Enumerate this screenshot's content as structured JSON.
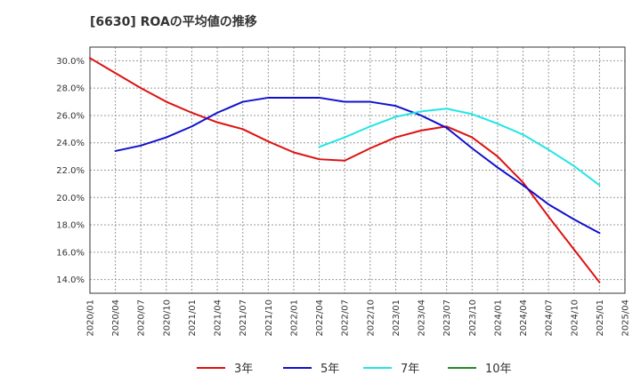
{
  "title": "[6630]  ROAの平均値の推移",
  "chart_data": {
    "type": "line",
    "title": "[6630]  ROAの平均値の推移",
    "xlabel": "",
    "ylabel": "",
    "ylim": [
      13.0,
      31.0
    ],
    "yticks": [
      14.0,
      16.0,
      18.0,
      20.0,
      22.0,
      24.0,
      26.0,
      28.0,
      30.0
    ],
    "ytick_labels": [
      "14.0%",
      "16.0%",
      "18.0%",
      "20.0%",
      "22.0%",
      "24.0%",
      "26.0%",
      "28.0%",
      "30.0%"
    ],
    "xticks": [
      "2020/01",
      "2020/04",
      "2020/07",
      "2020/10",
      "2021/01",
      "2021/04",
      "2021/07",
      "2021/10",
      "2022/01",
      "2022/04",
      "2022/07",
      "2022/10",
      "2023/01",
      "2023/04",
      "2023/07",
      "2023/10",
      "2024/01",
      "2024/04",
      "2024/07",
      "2024/10",
      "2025/01",
      "2025/04"
    ],
    "grid": true,
    "legend_position": "bottom",
    "series": [
      {
        "name": "3年",
        "color": "#dd1111",
        "x": [
          "2020/01",
          "2020/04",
          "2020/07",
          "2020/10",
          "2021/01",
          "2021/04",
          "2021/07",
          "2021/10",
          "2022/01",
          "2022/04",
          "2022/07",
          "2022/10",
          "2023/01",
          "2023/04",
          "2023/07",
          "2023/10",
          "2024/01",
          "2024/04",
          "2024/07",
          "2024/10",
          "2025/01"
        ],
        "values": [
          30.2,
          29.1,
          28.0,
          27.0,
          26.2,
          25.5,
          25.0,
          24.1,
          23.3,
          22.8,
          22.7,
          23.6,
          24.4,
          24.9,
          25.2,
          24.4,
          23.0,
          21.1,
          18.6,
          16.2,
          13.8
        ]
      },
      {
        "name": "5年",
        "color": "#1111cc",
        "x": [
          "2020/04",
          "2020/07",
          "2020/10",
          "2021/01",
          "2021/04",
          "2021/07",
          "2021/10",
          "2022/01",
          "2022/04",
          "2022/07",
          "2022/10",
          "2023/01",
          "2023/04",
          "2023/07",
          "2023/10",
          "2024/01",
          "2024/04",
          "2024/07",
          "2024/10",
          "2025/01"
        ],
        "values": [
          23.4,
          23.8,
          24.4,
          25.2,
          26.2,
          27.0,
          27.3,
          27.3,
          27.3,
          27.0,
          27.0,
          26.7,
          26.0,
          25.1,
          23.6,
          22.2,
          20.9,
          19.5,
          18.4,
          17.4
        ]
      },
      {
        "name": "7年",
        "color": "#22e5e5",
        "x": [
          "2022/04",
          "2022/07",
          "2022/10",
          "2023/01",
          "2023/04",
          "2023/07",
          "2023/10",
          "2024/01",
          "2024/04",
          "2024/07",
          "2024/10",
          "2025/01"
        ],
        "values": [
          23.7,
          24.4,
          25.2,
          25.9,
          26.3,
          26.5,
          26.1,
          25.4,
          24.6,
          23.5,
          22.3,
          20.9
        ]
      },
      {
        "name": "10年",
        "color": "#228b22",
        "x": [],
        "values": []
      }
    ]
  }
}
